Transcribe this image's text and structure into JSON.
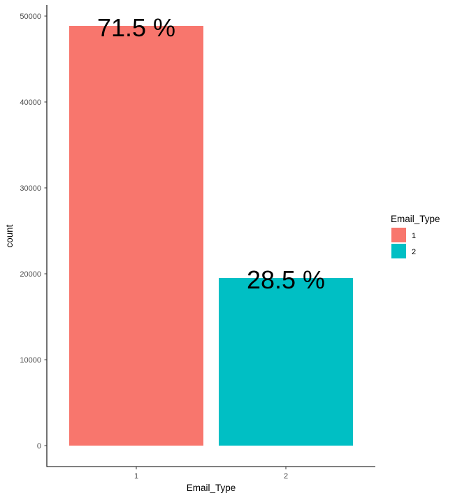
{
  "chart_data": {
    "type": "bar",
    "title": "",
    "xlabel": "Email_Type",
    "ylabel": "count",
    "categories": [
      "1",
      "2"
    ],
    "values": [
      48860,
      19510
    ],
    "bar_labels": [
      "71.5 %",
      "28.5 %"
    ],
    "colors": [
      "#F8766D",
      "#00BFC4"
    ],
    "ylim": [
      -2400,
      51200
    ],
    "yticks": [
      0,
      10000,
      20000,
      30000,
      40000,
      50000
    ],
    "ytick_labels": [
      "0",
      "10000",
      "20000",
      "30000",
      "40000",
      "50000"
    ],
    "grid": false,
    "legend": {
      "title": "Email_Type",
      "position": "right",
      "entries": [
        {
          "label": "1",
          "color": "#F8766D"
        },
        {
          "label": "2",
          "color": "#00BFC4"
        }
      ]
    }
  }
}
